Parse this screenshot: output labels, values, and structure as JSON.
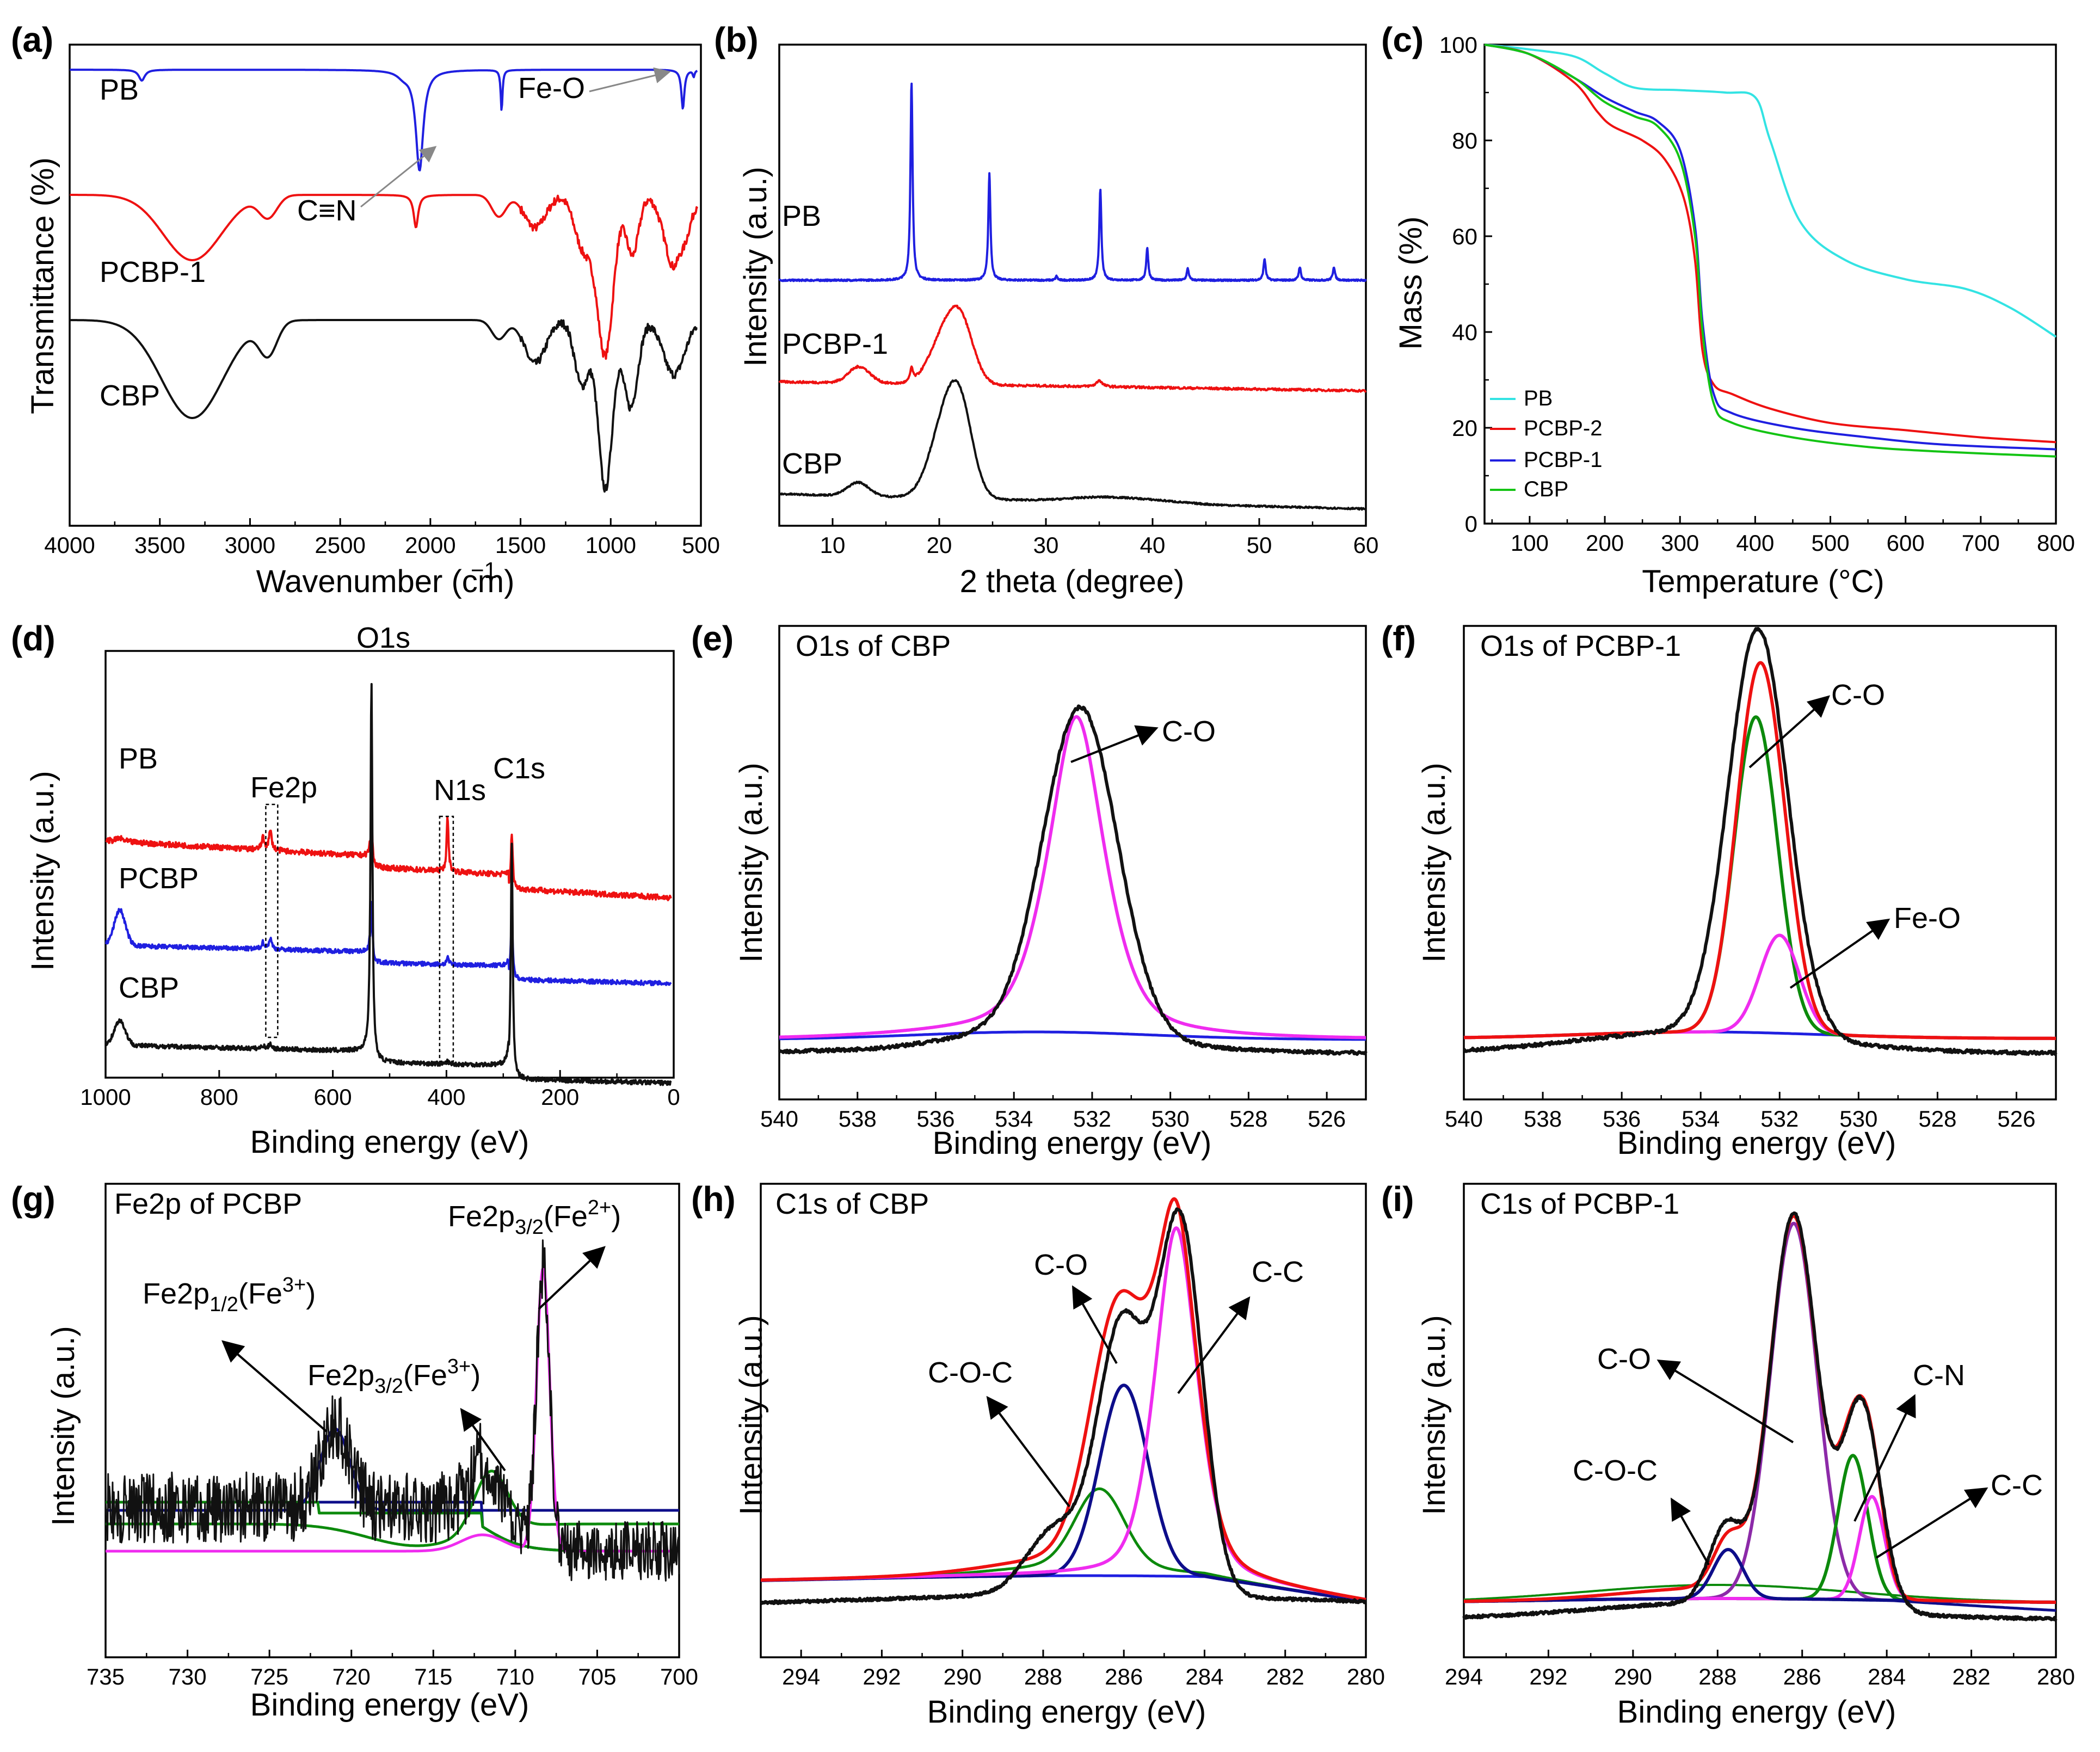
{
  "colors": {
    "blue": "#1f1fe0",
    "red": "#ee1111",
    "black": "#111111",
    "cyan": "#33e3e3",
    "green": "#14c414",
    "magenta": "#ef2cef",
    "navy": "#0d0d8a",
    "darkgreen": "#0c8a0c",
    "purple": "#8c2aa8",
    "bgblue": "#1f1fe0"
  },
  "chart_data": [
    {
      "panel": "(a)",
      "type": "line",
      "xlabel": "Wavenumber (cm)",
      "xlabel_sup": "−1",
      "ylabel": "Transmittance (%)",
      "xlim": [
        4000,
        500
      ],
      "xticks": [
        "4000",
        "3500",
        "3000",
        "2500",
        "2000",
        "1500",
        "1000",
        "500"
      ],
      "series": [
        {
          "name": "PB",
          "color": "blue"
        },
        {
          "name": "PCBP-1",
          "color": "red"
        },
        {
          "name": "CBP",
          "color": "black"
        }
      ],
      "annotations": [
        "C≡N",
        "Fe-O"
      ]
    },
    {
      "panel": "(b)",
      "type": "line",
      "xlabel": "2 theta (degree)",
      "ylabel": "Intensity (a.u.)",
      "xlim": [
        5,
        60
      ],
      "xticks": [
        "10",
        "20",
        "30",
        "40",
        "50",
        "60"
      ],
      "series": [
        {
          "name": "PB",
          "color": "blue",
          "peaks": [
            17.4,
            24.7,
            35.1,
            39.5,
            43.3,
            50.5,
            53.8,
            57.0
          ]
        },
        {
          "name": "PCBP-1",
          "color": "red"
        },
        {
          "name": "CBP",
          "color": "black"
        }
      ]
    },
    {
      "panel": "(c)",
      "type": "line",
      "xlabel": "Temperature (°C)",
      "ylabel": "Mass (%)",
      "xlim": [
        40,
        800
      ],
      "ylim": [
        0,
        100
      ],
      "xticks": [
        "100",
        "200",
        "300",
        "400",
        "500",
        "600",
        "700",
        "800"
      ],
      "yticks": [
        "0",
        "20",
        "40",
        "60",
        "80",
        "100"
      ],
      "legend": [
        "PB",
        "PCBP-2",
        "PCBP-1",
        "CBP"
      ],
      "series": [
        {
          "name": "PB",
          "color": "cyan",
          "x": [
            40,
            100,
            160,
            200,
            240,
            300,
            360,
            400,
            420,
            460,
            520,
            600,
            680,
            740,
            800
          ],
          "y": [
            100,
            99,
            97.5,
            94,
            91,
            90.5,
            90,
            89,
            80,
            63,
            55,
            51,
            49,
            45,
            39
          ]
        },
        {
          "name": "PCBP-2",
          "color": "red",
          "x": [
            40,
            100,
            160,
            190,
            210,
            250,
            280,
            305,
            320,
            330,
            345,
            370,
            420,
            500,
            600,
            700,
            800
          ],
          "y": [
            100,
            98,
            92,
            86,
            83,
            80,
            76,
            68,
            55,
            36,
            29,
            27,
            24,
            21,
            19.5,
            18,
            17
          ]
        },
        {
          "name": "PCBP-1",
          "color": "blue",
          "x": [
            40,
            100,
            160,
            200,
            240,
            270,
            300,
            320,
            330,
            345,
            370,
            450,
            550,
            650,
            800
          ],
          "y": [
            100,
            98,
            93,
            89,
            86,
            84,
            78,
            62,
            42,
            27,
            23,
            20,
            18,
            16.5,
            15.5
          ]
        },
        {
          "name": "CBP",
          "color": "green",
          "x": [
            40,
            100,
            160,
            200,
            240,
            270,
            300,
            320,
            330,
            345,
            370,
            450,
            550,
            650,
            800
          ],
          "y": [
            100,
            98,
            93,
            88,
            85,
            83,
            76,
            60,
            40,
            25,
            21,
            18,
            16,
            15,
            14
          ]
        }
      ]
    },
    {
      "panel": "(d)",
      "type": "line",
      "xlabel": "Binding energy (eV)",
      "ylabel": "Intensity (a.u.)",
      "xlim": [
        1000,
        0
      ],
      "xticks": [
        "1000",
        "800",
        "600",
        "400",
        "200",
        "0"
      ],
      "series": [
        {
          "name": "PB",
          "color": "red"
        },
        {
          "name": "PCBP",
          "color": "blue"
        },
        {
          "name": "CBP",
          "color": "black"
        }
      ],
      "annotations": [
        "O1s",
        "Fe2p",
        "N1s",
        "C1s"
      ]
    },
    {
      "panel": "(e)",
      "type": "line",
      "title": "O1s of CBP",
      "xlabel": "Binding energy (eV)",
      "ylabel": "Intensity (a.u.)",
      "xlim": [
        540,
        525
      ],
      "xticks": [
        "540",
        "538",
        "536",
        "534",
        "532",
        "530",
        "528",
        "526"
      ],
      "peaks": [
        {
          "name": "C-O",
          "center": 532.4,
          "color": "magenta"
        }
      ]
    },
    {
      "panel": "(f)",
      "type": "line",
      "title": "O1s of PCBP-1",
      "xlabel": "Binding energy (eV)",
      "ylabel": "Intensity (a.u.)",
      "xlim": [
        540,
        525
      ],
      "xticks": [
        "540",
        "538",
        "536",
        "534",
        "532",
        "530",
        "528",
        "526"
      ],
      "peaks": [
        {
          "name": "C-O",
          "center": 532.5,
          "color": "darkgreen"
        },
        {
          "name": "Fe-O",
          "center": 532.0,
          "color": "magenta"
        }
      ]
    },
    {
      "panel": "(g)",
      "type": "line",
      "title": "Fe2p of PCBP",
      "xlabel": "Binding energy (eV)",
      "ylabel": "Intensity (a.u.)",
      "xlim": [
        735,
        700
      ],
      "xticks": [
        "735",
        "730",
        "725",
        "720",
        "715",
        "710",
        "705",
        "700"
      ],
      "peaks": [
        {
          "name": "Fe2p1/2(Fe3+)",
          "center": 721.0,
          "color": "navy"
        },
        {
          "name": "Fe2p3/2(Fe3+)",
          "center": 711.5,
          "color": "darkgreen"
        },
        {
          "name": "Fe2p3/2(Fe2+)",
          "center": 708.3,
          "color": "magenta"
        }
      ]
    },
    {
      "panel": "(h)",
      "type": "line",
      "title": "C1s of CBP",
      "xlabel": "Binding energy (eV)",
      "ylabel": "Intensity (a.u.)",
      "xlim": [
        295,
        280
      ],
      "xticks": [
        "294",
        "292",
        "290",
        "288",
        "286",
        "284",
        "282",
        "280"
      ],
      "peaks": [
        {
          "name": "C-C",
          "center": 284.7,
          "color": "magenta"
        },
        {
          "name": "C-O",
          "center": 286.0,
          "color": "navy"
        },
        {
          "name": "C-O-C",
          "center": 286.6,
          "color": "darkgreen"
        }
      ]
    },
    {
      "panel": "(i)",
      "type": "line",
      "title": "C1s of PCBP-1",
      "xlabel": "Binding energy (eV)",
      "ylabel": "Intensity (a.u.)",
      "xlim": [
        294,
        280
      ],
      "xticks": [
        "294",
        "292",
        "290",
        "288",
        "286",
        "284",
        "282",
        "280"
      ],
      "peaks": [
        {
          "name": "C-O",
          "center": 286.2,
          "color": "purple"
        },
        {
          "name": "C-N",
          "center": 284.8,
          "color": "darkgreen"
        },
        {
          "name": "C-C",
          "center": 284.3,
          "color": "magenta"
        },
        {
          "name": "C-O-C",
          "center": 287.8,
          "color": "navy"
        }
      ]
    }
  ],
  "labels": {
    "a": "(a)",
    "b": "(b)",
    "c": "(c)",
    "d": "(d)",
    "e": "(e)",
    "f": "(f)",
    "g": "(g)",
    "h": "(h)",
    "i": "(i)",
    "a_PB": "PB",
    "a_PCBP": "PCBP-1",
    "a_CBP": "CBP",
    "a_CN": "C≡N",
    "a_FeO": "Fe-O",
    "b_PB": "PB",
    "b_PCBP": "PCBP-1",
    "b_CBP": "CBP",
    "d_PB": "PB",
    "d_PCBP": "PCBP",
    "d_CBP": "CBP",
    "d_O1s": "O1s",
    "d_Fe2p": "Fe2p",
    "d_N1s": "N1s",
    "d_C1s": "C1s",
    "e_CO": "C-O",
    "f_CO": "C-O",
    "f_FeO": "Fe-O",
    "g_fe12": "Fe2p",
    "g_fe12_sub": "1/2",
    "g_fe12_tail": "(Fe",
    "g_fe12_sup": "3+",
    "g_close": ")",
    "g_fe32a_sub": "3/2",
    "g_fe32a_sup": "3+",
    "g_fe32b_sup": "2+",
    "h_CO": "C-O",
    "h_CC": "C-C",
    "h_COC": "C-O-C",
    "i_CO": "C-O",
    "i_CN": "C-N",
    "i_CC": "C-C",
    "i_COC": "C-O-C"
  }
}
